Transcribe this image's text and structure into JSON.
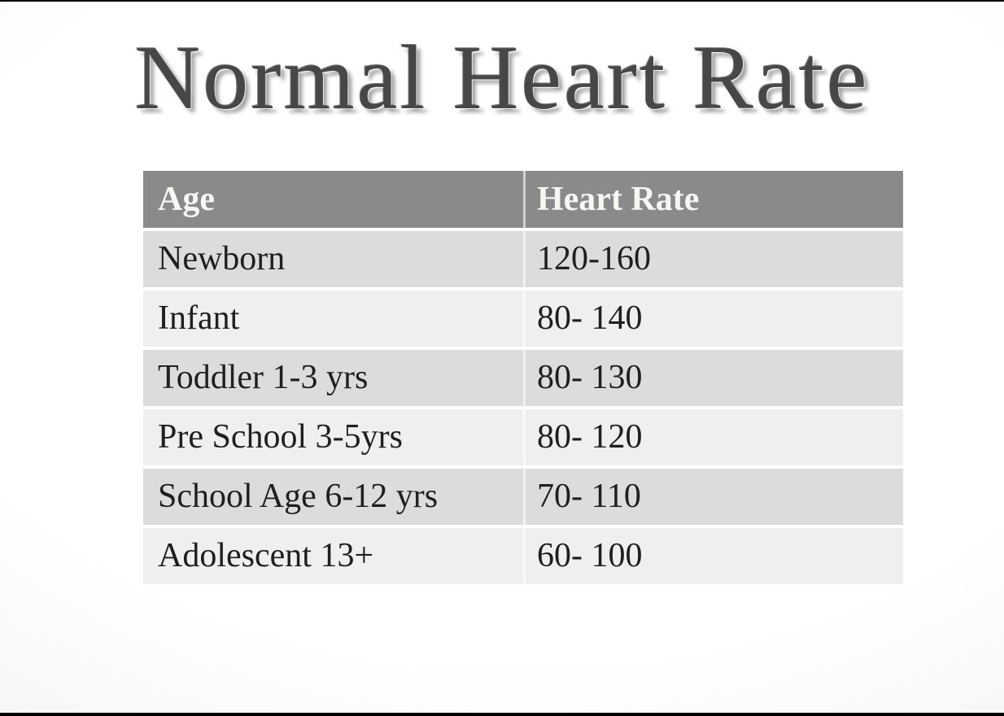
{
  "slide": {
    "title": "Normal Heart Rate"
  },
  "table": {
    "columns": [
      "Age",
      "Heart Rate"
    ],
    "rows": [
      {
        "age": "Newborn",
        "heart_rate": "120-160"
      },
      {
        "age": "Infant",
        "heart_rate": "80- 140"
      },
      {
        "age": "Toddler 1-3 yrs",
        "heart_rate": "80- 130"
      },
      {
        "age": "Pre School 3-5yrs",
        "heart_rate": "80- 120"
      },
      {
        "age": "School Age 6-12 yrs",
        "heart_rate": "70- 110"
      },
      {
        "age": "Adolescent 13+",
        "heart_rate": "60- 100"
      }
    ]
  },
  "colors": {
    "header_bg": "#8a8a8a",
    "header_text": "#f7f6f2",
    "row_dark": "#dcdcdc",
    "row_light": "#f0efef",
    "body_text": "#1f1f1f",
    "title_text": "#474747",
    "divider": "rgba(255,255,255,0.6)",
    "edge_line": "#000000"
  }
}
